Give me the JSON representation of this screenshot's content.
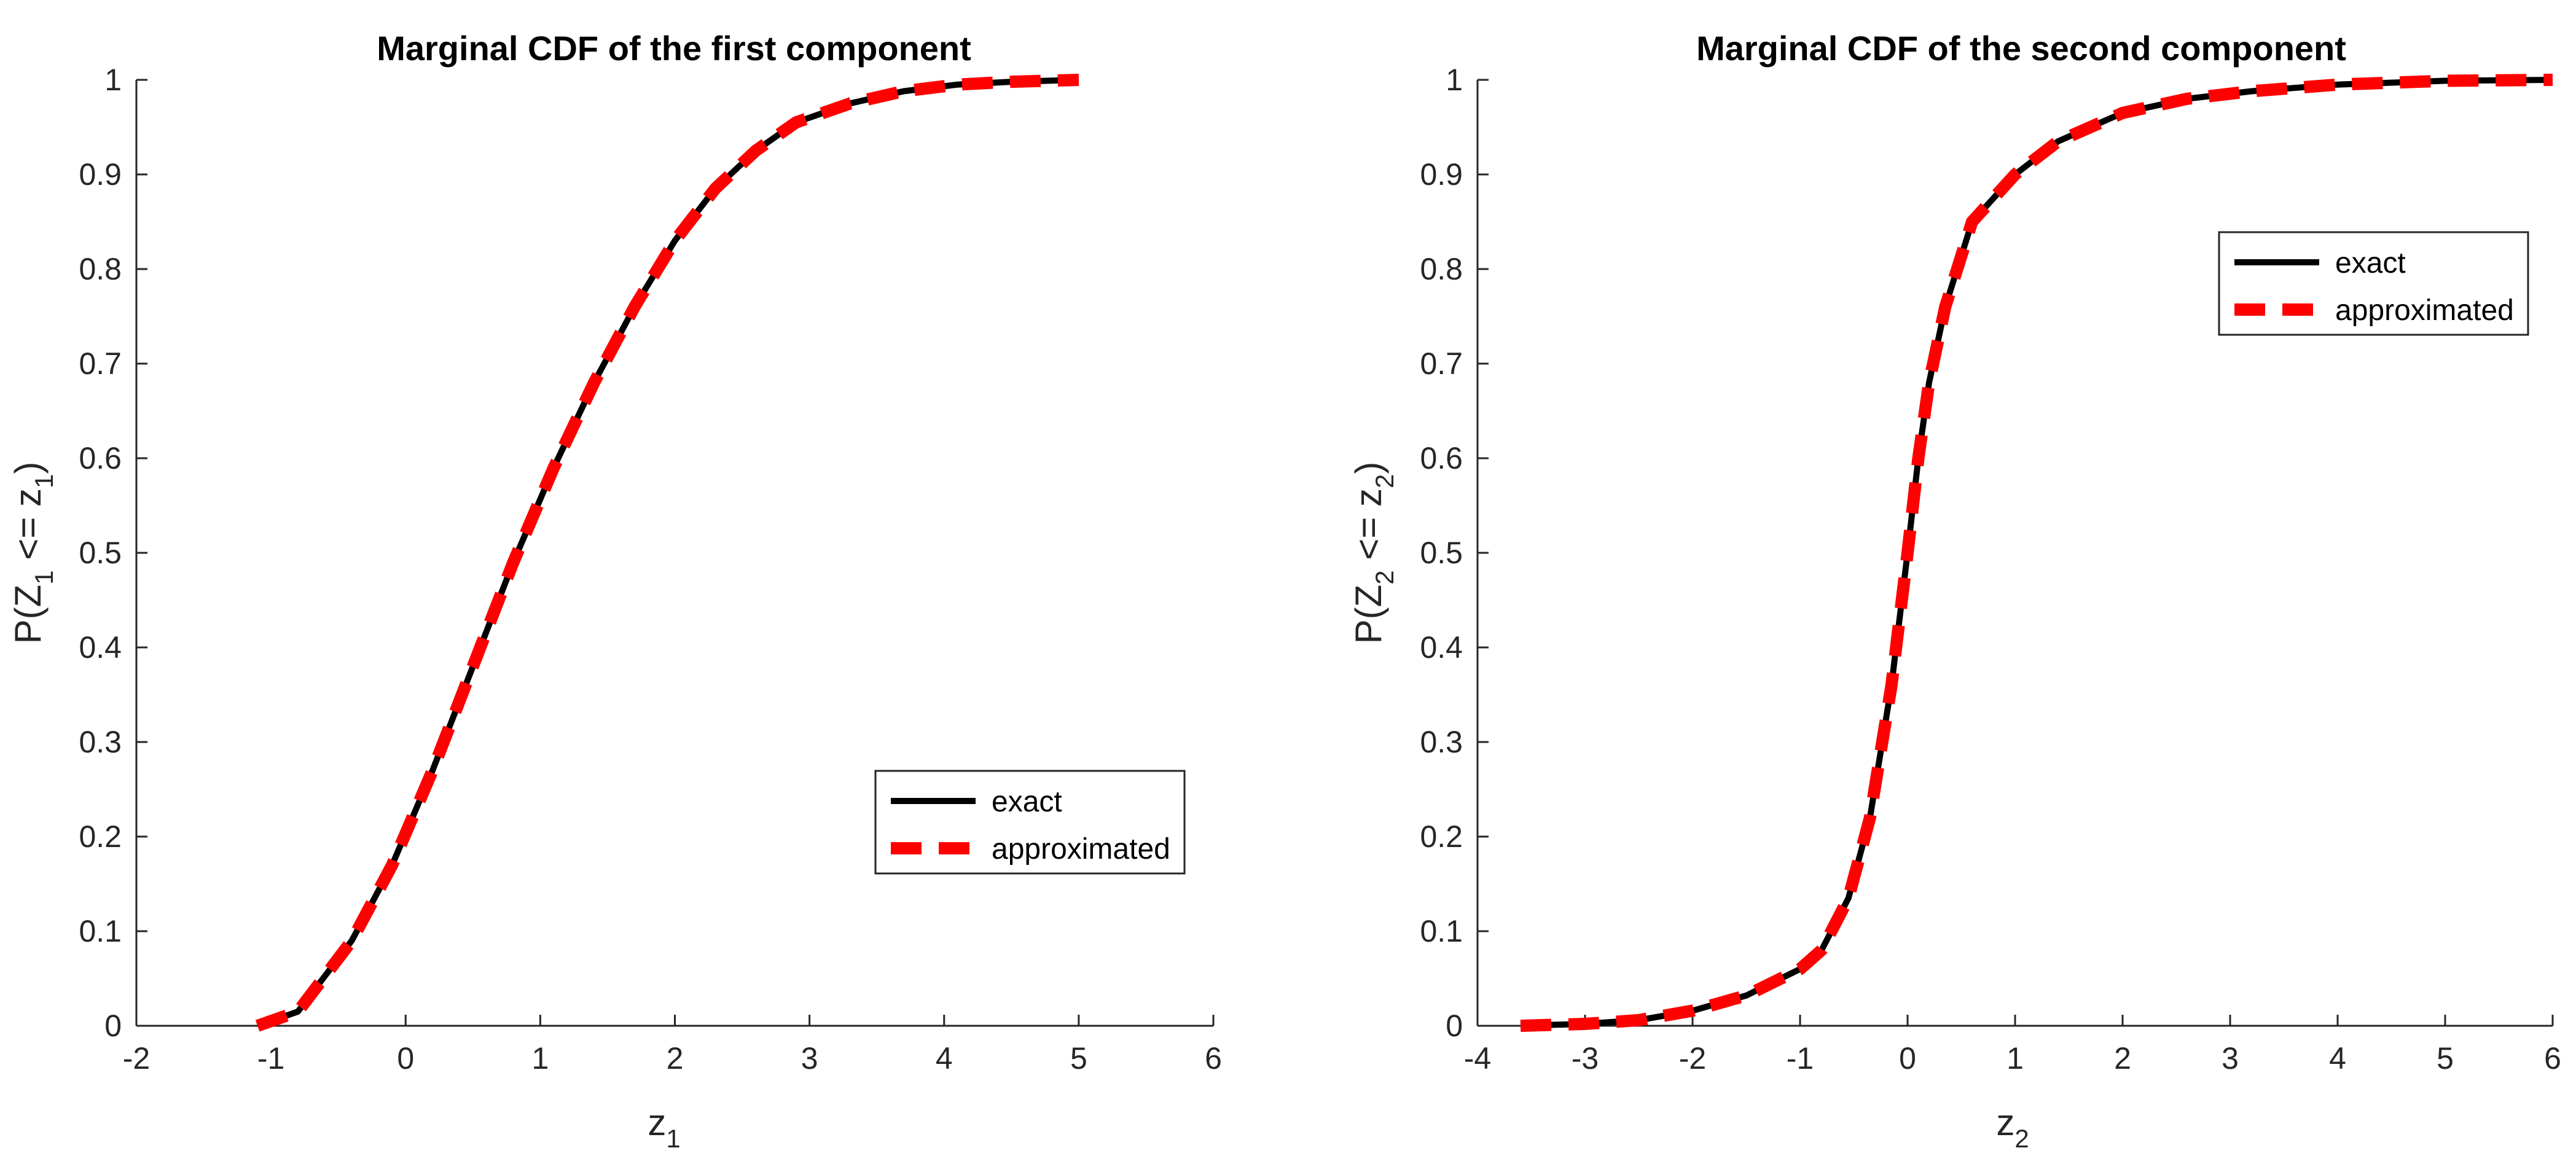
{
  "chart_data": [
    {
      "type": "line",
      "title": "Marginal CDF of the first component",
      "xlabel": {
        "base": "z",
        "sub": "1"
      },
      "ylabel": {
        "pre": "P(Z",
        "sub": "1",
        "mid": " <= z",
        "sub2": "1",
        "post": ")"
      },
      "xlim": [
        -2,
        6
      ],
      "ylim": [
        0,
        1
      ],
      "xticks": [
        "-2",
        "-1",
        "0",
        "1",
        "2",
        "3",
        "4",
        "5",
        "6"
      ],
      "yticks": [
        "0",
        "0.1",
        "0.2",
        "0.3",
        "0.4",
        "0.5",
        "0.6",
        "0.7",
        "0.8",
        "0.9",
        "1"
      ],
      "legend_position": "lower-right",
      "grid": false,
      "series": [
        {
          "name": "exact",
          "color": "#000000",
          "style": "solid",
          "x": [
            -1.1,
            -0.8,
            -0.4,
            -0.1,
            0.2,
            0.5,
            0.8,
            1.1,
            1.4,
            1.7,
            2.0,
            2.3,
            2.6,
            2.9,
            3.3,
            3.7,
            4.1,
            4.5,
            5.0
          ],
          "y": [
            0.0,
            0.015,
            0.09,
            0.17,
            0.27,
            0.38,
            0.49,
            0.59,
            0.68,
            0.76,
            0.83,
            0.885,
            0.925,
            0.955,
            0.975,
            0.988,
            0.995,
            0.998,
            1.0
          ]
        },
        {
          "name": "approximated",
          "color": "#ff0000",
          "style": "dashed",
          "x": [
            -1.1,
            -0.8,
            -0.4,
            -0.1,
            0.2,
            0.5,
            0.8,
            1.1,
            1.4,
            1.7,
            2.0,
            2.3,
            2.6,
            2.9,
            3.3,
            3.7,
            4.1,
            4.5,
            5.0
          ],
          "y": [
            0.0,
            0.015,
            0.09,
            0.17,
            0.27,
            0.38,
            0.49,
            0.59,
            0.68,
            0.76,
            0.83,
            0.885,
            0.925,
            0.955,
            0.975,
            0.988,
            0.995,
            0.998,
            1.0
          ]
        }
      ]
    },
    {
      "type": "line",
      "title": "Marginal CDF of the second component",
      "xlabel": {
        "base": "z",
        "sub": "2"
      },
      "ylabel": {
        "pre": "P(Z",
        "sub": "2",
        "mid": " <= z",
        "sub2": "2",
        "post": ")"
      },
      "xlim": [
        -4,
        6
      ],
      "ylim": [
        0,
        1
      ],
      "xticks": [
        "-4",
        "-3",
        "-2",
        "-1",
        "0",
        "1",
        "2",
        "3",
        "4",
        "5",
        "6"
      ],
      "yticks": [
        "0",
        "0.1",
        "0.2",
        "0.3",
        "0.4",
        "0.5",
        "0.6",
        "0.7",
        "0.8",
        "0.9",
        "1"
      ],
      "legend_position": "upper-right",
      "grid": false,
      "series": [
        {
          "name": "exact",
          "color": "#000000",
          "style": "solid",
          "x": [
            -3.6,
            -3.0,
            -2.5,
            -2.0,
            -1.5,
            -1.0,
            -0.8,
            -0.55,
            -0.35,
            -0.15,
            0.0,
            0.1,
            0.2,
            0.35,
            0.6,
            1.0,
            1.4,
            2.0,
            2.6,
            3.2,
            4.0,
            5.0,
            6.0
          ],
          "y": [
            0.0,
            0.002,
            0.006,
            0.016,
            0.032,
            0.06,
            0.08,
            0.135,
            0.22,
            0.36,
            0.5,
            0.6,
            0.68,
            0.76,
            0.85,
            0.9,
            0.935,
            0.965,
            0.98,
            0.988,
            0.995,
            0.999,
            1.0
          ]
        },
        {
          "name": "approximated",
          "color": "#ff0000",
          "style": "dashed",
          "x": [
            -3.6,
            -3.0,
            -2.5,
            -2.0,
            -1.5,
            -1.0,
            -0.8,
            -0.55,
            -0.35,
            -0.15,
            0.0,
            0.1,
            0.2,
            0.35,
            0.6,
            1.0,
            1.4,
            2.0,
            2.6,
            3.2,
            4.0,
            5.0,
            6.0
          ],
          "y": [
            0.0,
            0.002,
            0.006,
            0.016,
            0.032,
            0.06,
            0.08,
            0.135,
            0.22,
            0.36,
            0.5,
            0.6,
            0.68,
            0.76,
            0.85,
            0.9,
            0.935,
            0.965,
            0.98,
            0.988,
            0.995,
            0.999,
            1.0
          ]
        }
      ]
    }
  ]
}
